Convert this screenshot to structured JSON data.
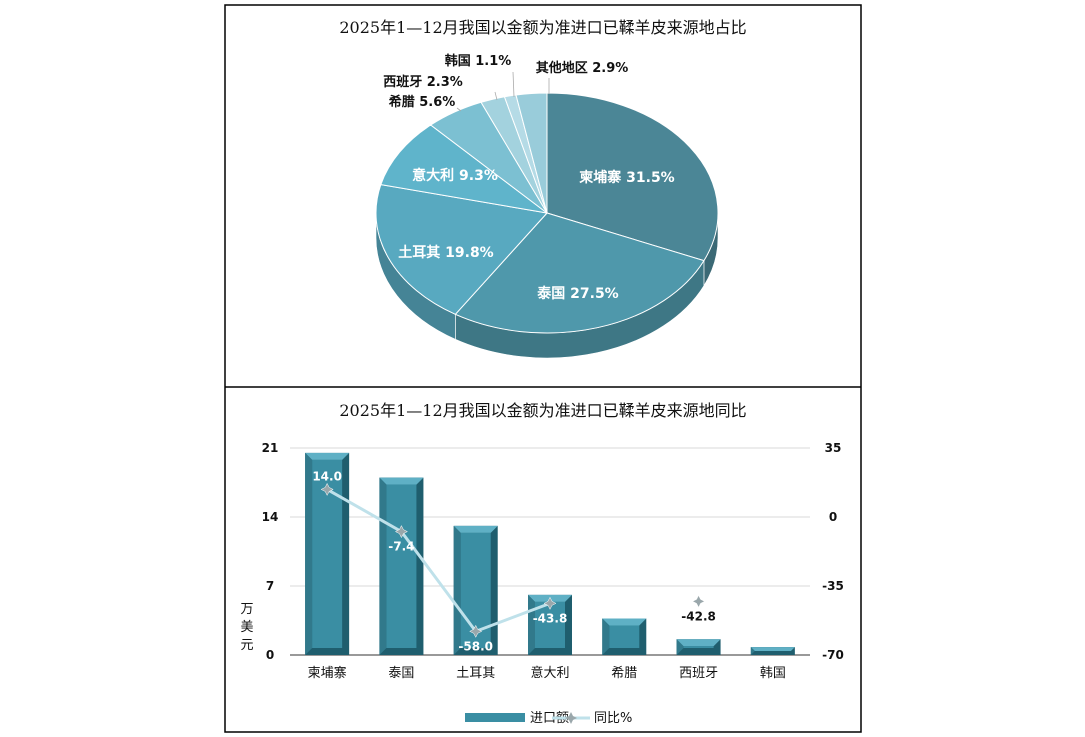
{
  "colors": {
    "pie": [
      "#4b8696",
      "#4f98ab",
      "#58a9c0",
      "#5fb4cb",
      "#7cc0d2",
      "#a3d2de",
      "#b5dbe6",
      "#99ccda"
    ],
    "bar_front": "#3a8ea3",
    "bar_dark": "#1f5e6e",
    "bar_light": "#5fb0c5",
    "line": "#bfe1ea",
    "marker": "#9aa7ab"
  },
  "chart_data": [
    {
      "type": "pie",
      "title": "2025年1—12月我国以金额为准进口已鞣羊皮来源地占比",
      "slices": [
        {
          "name": "柬埔寨",
          "value": 31.5,
          "label": "柬埔寨 31.5%"
        },
        {
          "name": "泰国",
          "value": 27.5,
          "label": "泰国 27.5%"
        },
        {
          "name": "土耳其",
          "value": 19.8,
          "label": "土耳其 19.8%"
        },
        {
          "name": "意大利",
          "value": 9.3,
          "label": "意大利 9.3%"
        },
        {
          "name": "希腊",
          "value": 5.6,
          "label": "希腊 5.6%"
        },
        {
          "name": "西班牙",
          "value": 2.3,
          "label": "西班牙 2.3%"
        },
        {
          "name": "韩国",
          "value": 1.1,
          "label": "韩国 1.1%"
        },
        {
          "name": "其他地区",
          "value": 2.9,
          "label": "其他地区 2.9%"
        }
      ]
    },
    {
      "type": "bar",
      "title": "2025年1—12月我国以金额为准进口已鞣羊皮来源地同比",
      "categories": [
        "柬埔寨",
        "泰国",
        "土耳其",
        "意大利",
        "希腊",
        "西班牙",
        "韩国"
      ],
      "ylabel": "万美元",
      "ylim": [
        0,
        21
      ],
      "yticks": [
        "0",
        "7",
        "14",
        "21"
      ],
      "y2lim": [
        -70,
        35
      ],
      "y2ticks": [
        "-70",
        "-35",
        "0",
        "35"
      ],
      "series": [
        {
          "name": "进口额",
          "type": "bar",
          "values": [
            20.5,
            18.0,
            13.1,
            6.1,
            3.7,
            1.6,
            0.8
          ]
        },
        {
          "name": "同比%",
          "type": "line",
          "axis": "right",
          "values": [
            14.0,
            -7.4,
            -58.0,
            -43.8,
            null,
            -42.8,
            null
          ],
          "labels": [
            "14.0",
            "-7.4",
            "-58.0",
            "-43.8",
            "",
            "-42.8",
            ""
          ]
        }
      ],
      "legend": "bottom"
    }
  ]
}
